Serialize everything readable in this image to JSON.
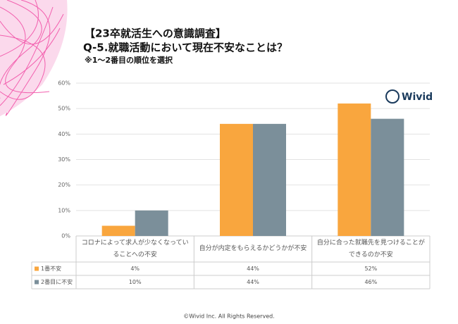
{
  "header": {
    "title": "【23卒就活生への意識調査】",
    "question": "Q-5.就職活動において現在不安なことは？",
    "note": "※1〜2番目の順位を選択"
  },
  "logo": "Wivid",
  "footer": "©Wivid Inc. All Rights Reserved.",
  "chart_data": {
    "type": "bar",
    "categories": [
      "コロナによって求人が少なくなっていることへの不安",
      "自分が内定をもらえるかどうかが不安",
      "自分に合った就職先を見つけることができるのか不安"
    ],
    "series": [
      {
        "name": "1番不安",
        "color": "#f9a63e",
        "values": [
          4,
          44,
          52
        ],
        "value_labels": [
          "4%",
          "44%",
          "52%"
        ]
      },
      {
        "name": "2番目に不安",
        "color": "#7b8f9a",
        "values": [
          10,
          44,
          46
        ],
        "value_labels": [
          "10%",
          "44%",
          "46%"
        ]
      }
    ],
    "ylim": [
      0,
      60
    ],
    "yticks": [
      {
        "value": 0,
        "label": "0%"
      },
      {
        "value": 10,
        "label": "10%"
      },
      {
        "value": 20,
        "label": "20%"
      },
      {
        "value": 30,
        "label": "30%"
      },
      {
        "value": 40,
        "label": "40%"
      },
      {
        "value": 50,
        "label": "50%"
      },
      {
        "value": 60,
        "label": "60%"
      }
    ],
    "grid": true
  }
}
